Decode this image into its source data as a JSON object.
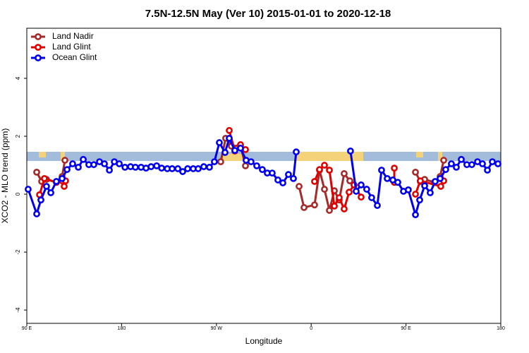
{
  "chart_data": {
    "type": "line",
    "title": "7.5N-12.5N May (Ver 10)   2015-01-01 to 2020-12-18",
    "xlabel": "Longitude",
    "ylabel": "XCO2 - MLO trend (ppm)",
    "xlim": [
      90,
      540
    ],
    "ylim": [
      -4.46,
      5.73
    ],
    "xticks": [
      {
        "value": 90,
        "label": "90 E"
      },
      180,
      {
        "value": 270,
        "label": "90 W"
      },
      {
        "value": 360,
        "label": "0"
      },
      {
        "value": 450,
        "label": "90 E"
      },
      {
        "value": 540,
        "label": "180"
      }
    ],
    "yticks": [
      -4,
      -2,
      0,
      2,
      4
    ],
    "legend": "top-left",
    "series": [
      {
        "name": "Land Nadir",
        "color": "#a52a2a",
        "x": [
          99.4,
          104.1,
          108.7,
          118.1,
          123.5,
          126.2,
          null,
          274.1,
          278.8,
          284.2,
          292.9,
          297.6,
          null,
          348.5,
          353.2,
          363.2,
          367.9,
          372.6,
          377.3,
          382,
          386.6,
          391.3,
          396.7,
          400.7,
          null,
          459,
          463.6,
          467.7,
          477.1,
          482.4,
          485.8
        ],
        "values": [
          0.76,
          0.44,
          0.51,
          0.41,
          0.61,
          1.17,
          null,
          1.12,
          1.93,
          1.66,
          1.68,
          0.98,
          null,
          0.27,
          -0.46,
          -0.37,
          0.83,
          0.17,
          -0.56,
          0.12,
          -0.2,
          0.71,
          0.46,
          0.32,
          null,
          0.76,
          0.44,
          0.51,
          0.41,
          0.61,
          1.17
        ]
      },
      {
        "name": "Land Glint",
        "color": "#e00000",
        "x": [
          102.1,
          106.7,
          118.1,
          123.5,
          125.5,
          126.8,
          null,
          282.2,
          287.5,
          292.9,
          297.6,
          null,
          363.2,
          367.9,
          372.6,
          377.3,
          382,
          386.6,
          391.3,
          396,
          400.7,
          407.4,
          null,
          438.9,
          438.9,
          null,
          459,
          463.6,
          483,
          485.8
        ],
        "values": [
          -0.02,
          0.54,
          0.41,
          0.46,
          0.27,
          0.46,
          null,
          2.2,
          1.49,
          1.71,
          1.54,
          null,
          0.44,
          0.85,
          1.0,
          0.83,
          -0.41,
          -0.12,
          -0.51,
          0.07,
          0.32,
          -0.1,
          null,
          0.9,
          0.41,
          null,
          0,
          0.46,
          0.27,
          0.46
        ]
      },
      {
        "name": "Ocean Glint",
        "color": "#0000ee",
        "x": [
          91.3,
          99.4,
          103.4,
          108.7,
          112.8,
          118.1,
          123.5,
          128.2,
          133.5,
          138.9,
          143.6,
          148.9,
          153.6,
          159,
          163.7,
          168.4,
          173.1,
          177.8,
          183.2,
          188.5,
          193.1,
          198.5,
          203.2,
          208,
          213.3,
          218,
          223.4,
          228,
          233.4,
          238,
          242.7,
          248,
          252.7,
          258,
          263.4,
          268.1,
          272.8,
          278.2,
          282.2,
          287.5,
          292.9,
          298.2,
          302.9,
          308.3,
          313.6,
          318.3,
          323,
          328.4,
          333.1,
          338.4,
          343.1,
          345.8,
          null,
          397.3,
          402.7,
          407.4,
          412.7,
          417.4,
          422.8,
          426.8,
          432.2,
          437.5,
          442.2,
          447.6,
          452.2,
          459,
          463,
          467.7,
          473,
          477.7,
          482.4,
          487.7,
          493.1,
          497.8,
          502.5,
          507.8,
          512.5,
          517.9,
          522.6,
          527.3,
          532,
          537.3
        ],
        "values": [
          0.17,
          -0.68,
          -0.2,
          0.27,
          0.05,
          0.44,
          0.54,
          0.85,
          1.05,
          0.93,
          1.2,
          1.02,
          1.02,
          1.12,
          1.05,
          0.83,
          1.12,
          1.05,
          0.93,
          0.95,
          0.93,
          0.93,
          0.9,
          0.95,
          0.98,
          0.9,
          0.88,
          0.88,
          0.88,
          0.78,
          0.88,
          0.88,
          0.88,
          0.95,
          0.93,
          1.12,
          1.78,
          1.44,
          1.93,
          1.51,
          1.59,
          1.17,
          1.12,
          0.98,
          0.85,
          0.73,
          0.73,
          0.49,
          0.39,
          0.68,
          0.54,
          1.46,
          null,
          1.49,
          0.1,
          0.32,
          0.17,
          -0.12,
          -0.39,
          0.83,
          0.54,
          0.49,
          0.41,
          0.1,
          0.15,
          -0.71,
          -0.2,
          0.29,
          0.05,
          0.44,
          0.54,
          0.85,
          1.05,
          0.93,
          1.2,
          1.02,
          1.02,
          1.12,
          1.05,
          0.83,
          1.12,
          1.05
        ]
      }
    ]
  }
}
